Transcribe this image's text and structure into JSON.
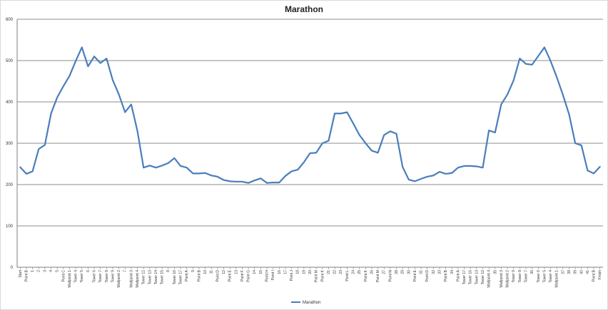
{
  "chart_data": {
    "type": "line",
    "title": "Marathon",
    "xlabel": "",
    "ylabel": "",
    "ylim": [
      0,
      600
    ],
    "yticks": [
      0,
      100,
      200,
      300,
      400,
      500,
      600
    ],
    "grid": "major-horizontal",
    "legend": "bottom",
    "categories": [
      "Start",
      "Point B",
      "1",
      "2",
      "3",
      "4",
      "5",
      "Point C",
      "Wallpoint 1",
      "Tower 4",
      "Tower 5",
      "6",
      "Tower 6",
      "Tower 7",
      "Tower 8",
      "Tower 9",
      "Wallpoint 2",
      "7",
      "Wallpoint 3",
      "Wallpoint 4",
      "Tower 12",
      "Tower 13",
      "Tower 14",
      "Tower 15",
      "8",
      "Tower 16",
      "Tower 17",
      "Point A",
      "9",
      "Point B",
      "10",
      "11",
      "Point D",
      "12",
      "Point E",
      "13",
      "Point F",
      "Point G",
      "14",
      "15",
      "Point H",
      "Point I",
      "16",
      "17",
      "Point J",
      "18",
      "19",
      "20",
      "Point M",
      "Point K",
      "21",
      "22",
      "23",
      "Point L",
      "24",
      "25",
      "Point K",
      "26",
      "Point M",
      "27",
      "Point N",
      "28",
      "29",
      "30",
      "Point E",
      "31",
      "Point D",
      "32",
      "33",
      "Point B",
      "34",
      "Point A",
      "Tower 17",
      "Tower 16",
      "Tower 13",
      "Tower 12",
      "Wallpoint 4",
      "35",
      "Wallpoint 3",
      "Wallpoint 2",
      "Tower 9",
      "Tower 8",
      "Tower 7",
      "36",
      "Tower 6",
      "Tower 5",
      "Tower 4",
      "Wallpoint 1",
      "37",
      "38",
      "39",
      "40",
      "41",
      "Point B",
      "Finish"
    ],
    "series": [
      {
        "name": "Marathon",
        "color": "#4a7ebb",
        "values": [
          242,
          226,
          232,
          286,
          296,
          372,
          411,
          438,
          463,
          499,
          532,
          486,
          510,
          494,
          505,
          453,
          418,
          375,
          394,
          330,
          241,
          246,
          241,
          246,
          252,
          264,
          245,
          241,
          227,
          227,
          228,
          222,
          219,
          211,
          208,
          207,
          207,
          204,
          210,
          215,
          204,
          205,
          205,
          221,
          232,
          236,
          254,
          276,
          277,
          300,
          306,
          372,
          372,
          375,
          348,
          320,
          300,
          282,
          277,
          320,
          329,
          323,
          243,
          212,
          208,
          214,
          219,
          222,
          231,
          226,
          228,
          241,
          245,
          245,
          244,
          241,
          331,
          326,
          394,
          418,
          452,
          505,
          492,
          490,
          511,
          532,
          499,
          460,
          417,
          370,
          300,
          295,
          234,
          227,
          243
        ]
      }
    ]
  }
}
